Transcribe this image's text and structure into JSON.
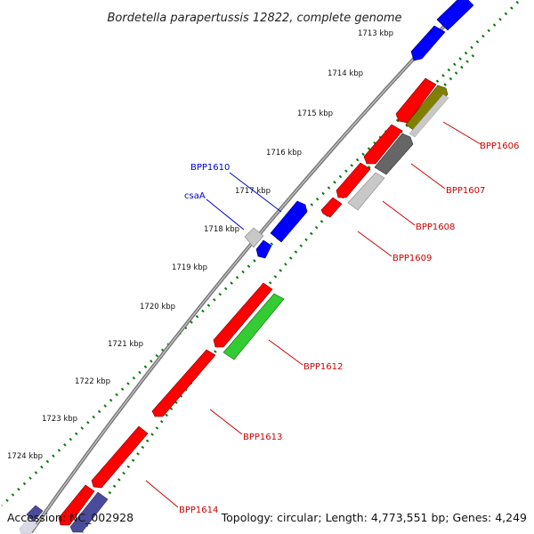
{
  "title": "Bordetella parapertussis 12822, complete genome",
  "footer": {
    "accession": "Accession: NC_002928",
    "summary": "Topology: circular; Length: 4,773,551 bp; Genes: 4,249"
  },
  "colors": {
    "cds_forward": "#ff0000",
    "cds_reverse_blue": "#0000ff",
    "rna_green": "#33cc33",
    "dark_gray": "#666666",
    "light_gray": "#c8c8c8",
    "olive": "#808000",
    "slate": "#4b4b9b",
    "backbone": "#888888",
    "tick": "#0a7a0a",
    "label_red": "#cc0000",
    "label_blue": "#0000cc"
  },
  "scale_labels": [
    "1713 kbp",
    "1714 kbp",
    "1715 kbp",
    "1716 kbp",
    "1717 kbp",
    "1718 kbp",
    "1719 kbp",
    "1720 kbp",
    "1721 kbp",
    "1722 kbp",
    "1723 kbp",
    "1724 kbp"
  ],
  "gene_labels": {
    "bpp1606": "BPP1606",
    "bpp1607": "BPP1607",
    "bpp1608": "BPP1608",
    "bpp1609": "BPP1609",
    "bpp1610": "BPP1610",
    "csaA": "csaA",
    "bpp1612": "BPP1612",
    "bpp1613": "BPP1613",
    "bpp1614": "BPP1614"
  }
}
